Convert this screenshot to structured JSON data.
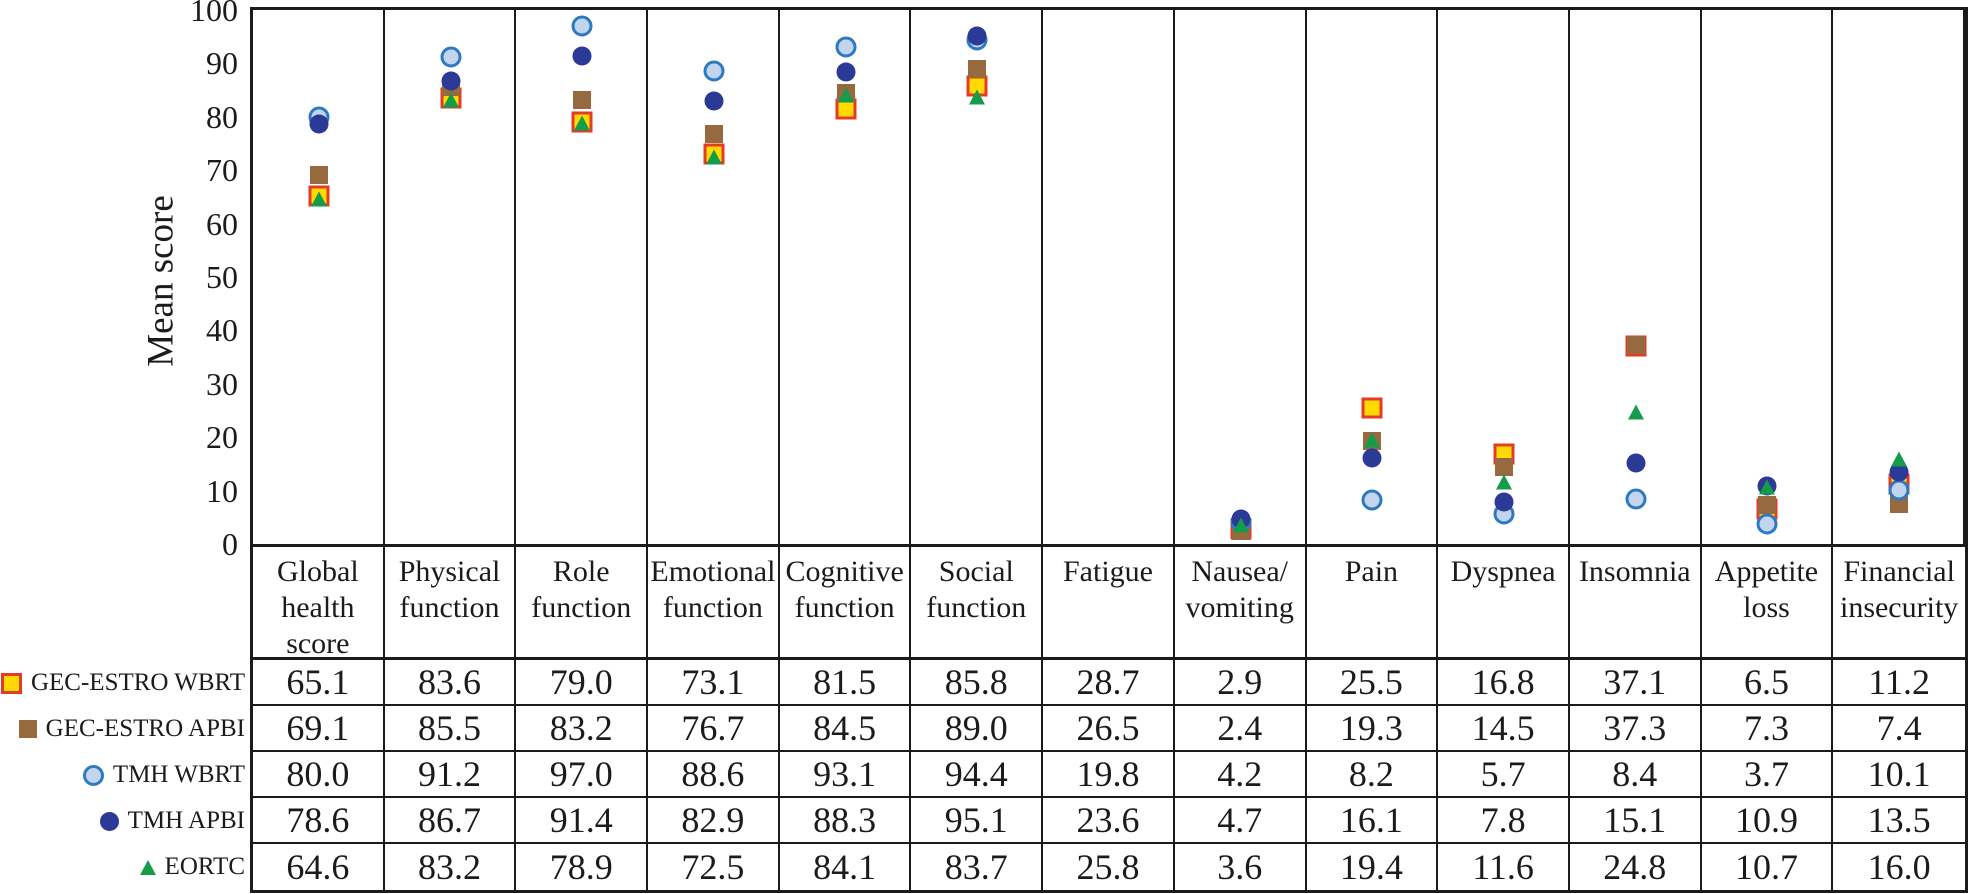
{
  "chart_data": {
    "type": "scatter",
    "title": "",
    "ylabel": "Mean score",
    "ylim": [
      0,
      100
    ],
    "yticks": [
      0,
      10,
      20,
      30,
      40,
      50,
      60,
      70,
      80,
      90,
      100
    ],
    "grid": "vertical category separators only, no horizontal gridlines",
    "legend_position": "left of table rows (one entry per table row)",
    "categories": [
      "Global\nhealth\nscore",
      "Physical\nfunction",
      "Role\nfunction",
      "Emotional\nfunction",
      "Cognitive\nfunction",
      "Social\nfunction",
      "Fatigue",
      "Nausea/\nvomiting",
      "Pain",
      "Dyspnea",
      "Insomnia",
      "Appetite\nloss",
      "Financial\ninsecurity"
    ],
    "categories_without_plotted_markers": [
      "Fatigue"
    ],
    "series": [
      {
        "name": "GEC-ESTRO WBRT",
        "marker": "square-outlined",
        "fill": "#FFD900",
        "stroke": "#E43A28",
        "values": [
          65.1,
          83.6,
          79.0,
          73.1,
          81.5,
          85.8,
          28.7,
          2.9,
          25.5,
          16.8,
          37.1,
          6.5,
          11.2
        ]
      },
      {
        "name": "GEC-ESTRO APBI",
        "marker": "square",
        "fill": "#97693F",
        "stroke": null,
        "values": [
          69.1,
          85.5,
          83.2,
          76.7,
          84.5,
          89.0,
          26.5,
          2.4,
          19.3,
          14.5,
          37.3,
          7.3,
          7.4
        ]
      },
      {
        "name": "TMH WBRT",
        "marker": "circle-outlined",
        "fill": "#C3D4EE",
        "stroke": "#2E7AC1",
        "values": [
          80.0,
          91.2,
          97.0,
          88.6,
          93.1,
          94.4,
          19.8,
          4.2,
          8.2,
          5.7,
          8.4,
          3.7,
          10.1
        ]
      },
      {
        "name": "TMH APBI",
        "marker": "circle",
        "fill": "#2C3A97",
        "stroke": null,
        "values": [
          78.6,
          86.7,
          91.4,
          82.9,
          88.3,
          95.1,
          23.6,
          4.7,
          16.1,
          7.8,
          15.1,
          10.9,
          13.5
        ]
      },
      {
        "name": "EORTC",
        "marker": "triangle",
        "fill": "#149C4A",
        "stroke": null,
        "values": [
          64.6,
          83.2,
          78.9,
          72.5,
          84.1,
          83.7,
          25.8,
          3.6,
          19.4,
          11.6,
          24.8,
          10.7,
          16.0
        ]
      }
    ]
  }
}
